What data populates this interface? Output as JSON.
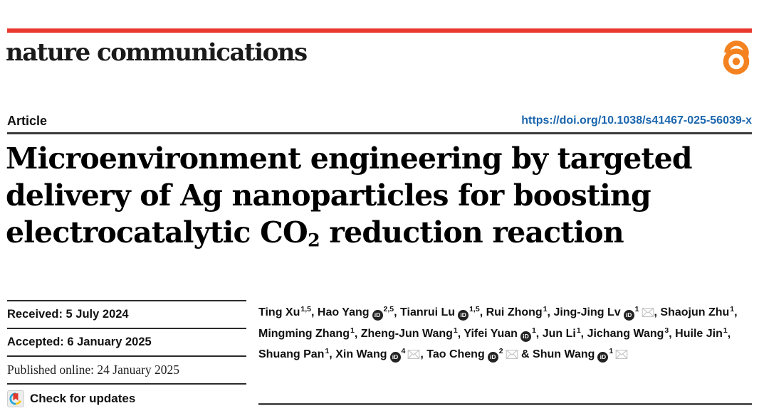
{
  "masthead": {
    "brand": "nature communications"
  },
  "article": {
    "label": "Article",
    "doi": "https://doi.org/10.1038/s41467-025-56039-x"
  },
  "title": {
    "line1": "Microenvironment engineering by targeted",
    "line2": "delivery of Ag nanoparticles for boosting",
    "line3_pre": "electrocatalytic CO",
    "line3_sub": "2",
    "line3_post": " reduction reaction"
  },
  "dates": {
    "received": "Received: 5 July 2024",
    "accepted": "Accepted: 6 January 2025",
    "published": "Published online: 24 January 2025"
  },
  "check_updates": {
    "label": "Check for updates"
  },
  "authors": [
    {
      "name": "Ting Xu",
      "sup": "1,5",
      "orcid": false,
      "email": false
    },
    {
      "name": "Hao Yang",
      "sup": "2,5",
      "orcid": true,
      "email": false
    },
    {
      "name": "Tianrui Lu",
      "sup": "1,5",
      "orcid": true,
      "email": false
    },
    {
      "name": "Rui Zhong",
      "sup": "1",
      "orcid": false,
      "email": false
    },
    {
      "name": "Jing-Jing Lv",
      "sup": "1",
      "orcid": true,
      "email": true
    },
    {
      "name": "Shaojun Zhu",
      "sup": "1",
      "orcid": false,
      "email": false
    },
    {
      "name": "Mingming Zhang",
      "sup": "1",
      "orcid": false,
      "email": false
    },
    {
      "name": "Zheng-Jun Wang",
      "sup": "1",
      "orcid": false,
      "email": false
    },
    {
      "name": "Yifei Yuan",
      "sup": "1",
      "orcid": true,
      "email": false
    },
    {
      "name": "Jun Li",
      "sup": "1",
      "orcid": false,
      "email": false
    },
    {
      "name": "Jichang Wang",
      "sup": "3",
      "orcid": false,
      "email": false
    },
    {
      "name": "Huile Jin",
      "sup": "1",
      "orcid": false,
      "email": false
    },
    {
      "name": "Shuang Pan",
      "sup": "1",
      "orcid": false,
      "email": false
    },
    {
      "name": "Xin Wang",
      "sup": "4",
      "orcid": true,
      "email": true
    },
    {
      "name": "Tao Cheng",
      "sup": "2",
      "orcid": true,
      "email": true
    },
    {
      "name": "Shun Wang",
      "sup": "1",
      "orcid": true,
      "email": true
    }
  ],
  "colors": {
    "brand_red": "#e8392f",
    "link_blue": "#1b66ad",
    "open_access_orange": "#f58220"
  }
}
